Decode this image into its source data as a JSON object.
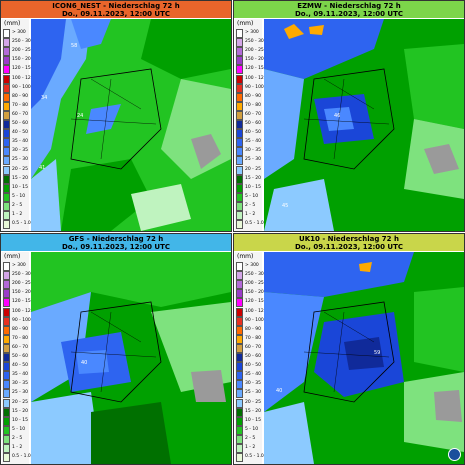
{
  "panels": [
    {
      "title": "ICON6_NEST - Niederschlag 72 h",
      "date": "Do., 09.11.2023, 12:00 UTC",
      "header_color": "#e9652b",
      "labels": [
        "58",
        "34",
        "24",
        "41"
      ]
    },
    {
      "title": "EZMW - Niederschlag 72 h",
      "date": "Do., 09.11.2023, 12:00 UTC",
      "header_color": "#7cd54a",
      "labels": [
        "46",
        "45"
      ]
    },
    {
      "title": "GFS - Niederschlag 72 h",
      "date": "Do., 09.11.2023, 12:00 UTC",
      "header_color": "#42b6e8",
      "labels": [
        "40"
      ]
    },
    {
      "title": "UK10 - Niederschlag 72 h",
      "date": "Do., 09.11.2023, 12:00 UTC",
      "header_color": "#c9d64a",
      "labels": [
        "59",
        "40"
      ]
    }
  ],
  "legend": {
    "unit": "(mm)",
    "entries": [
      {
        "label": "> 300",
        "color": "#ffffff"
      },
      {
        "label": "250 - 300",
        "color": "#d4a6e8"
      },
      {
        "label": "200 - 250",
        "color": "#b36ad8"
      },
      {
        "label": "150 - 200",
        "color": "#9b3cc9"
      },
      {
        "label": "120 - 150",
        "color": "#ff00ff"
      },
      {
        "label": "100 - 120",
        "color": "#cc0000"
      },
      {
        "label": "90 - 100",
        "color": "#e83020"
      },
      {
        "label": "80 - 90",
        "color": "#ff6a00"
      },
      {
        "label": "70 - 80",
        "color": "#ffaa00"
      },
      {
        "label": "60 - 70",
        "color": "#d2a040"
      },
      {
        "label": "50 - 60",
        "color": "#102a9a"
      },
      {
        "label": "40 - 50",
        "color": "#1a46d8"
      },
      {
        "label": "35 - 40",
        "color": "#2e64f0"
      },
      {
        "label": "30 - 35",
        "color": "#4a88ff"
      },
      {
        "label": "25 - 30",
        "color": "#6aaaff"
      },
      {
        "label": "20 - 25",
        "color": "#8ccaff"
      },
      {
        "label": "15 - 20",
        "color": "#007000"
      },
      {
        "label": "10 - 15",
        "color": "#00a000"
      },
      {
        "label": "5 - 10",
        "color": "#22c422"
      },
      {
        "label": "2 - 5",
        "color": "#7ee27e"
      },
      {
        "label": "1 - 2",
        "color": "#bff3bf"
      },
      {
        "label": "0.5 - 1.0",
        "color": "#e8f8d8"
      }
    ]
  }
}
